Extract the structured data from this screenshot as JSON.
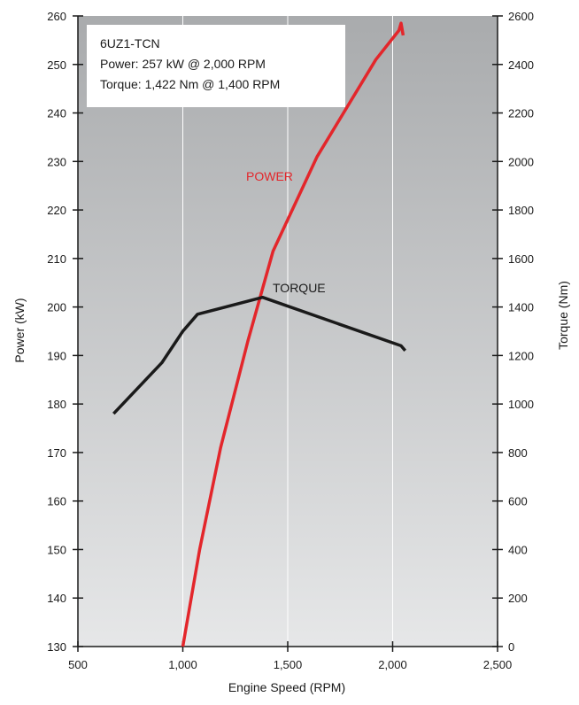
{
  "chart_data": {
    "type": "line",
    "xlabel": "Engine Speed (RPM)",
    "ylabel_left": "Power (kW)",
    "ylabel_right": "Torque (Nm)",
    "x_range": [
      500,
      2500
    ],
    "y_left_range": [
      130,
      260
    ],
    "y_right_range": [
      0,
      2600
    ],
    "x_ticks": [
      500,
      1000,
      1500,
      2000,
      2500
    ],
    "x_tick_labels": [
      "500",
      "1,000",
      "1,500",
      "2,000",
      "2,500"
    ],
    "y_left_ticks": [
      130,
      140,
      150,
      160,
      170,
      180,
      190,
      200,
      210,
      220,
      230,
      240,
      250,
      260
    ],
    "y_left_tick_labels": [
      "130",
      "140",
      "150",
      "160",
      "170",
      "180",
      "190",
      "200",
      "210",
      "220",
      "230",
      "240",
      "250",
      "260"
    ],
    "y_right_ticks": [
      0,
      200,
      400,
      600,
      800,
      1000,
      1200,
      1400,
      1600,
      1800,
      2000,
      2200,
      2400,
      2600
    ],
    "y_right_tick_labels": [
      "0",
      "200",
      "400",
      "600",
      "800",
      "1000",
      "1200",
      "1400",
      "1600",
      "1800",
      "2000",
      "2200",
      "2400",
      "2600"
    ],
    "grid": "vertical",
    "background": "vertical-gradient-grey",
    "legend": {
      "lines": [
        "6UZ1-TCN",
        "Power: 257 kW @ 2,000 RPM",
        "Torque: 1,422 Nm @ 1,400 RPM"
      ],
      "placement": "top-left"
    },
    "series": [
      {
        "name": "POWER",
        "axis": "left",
        "color": "#e3262b",
        "x": [
          1000,
          1080,
          1180,
          1310,
          1430,
          1640,
          1920,
          2030,
          2040,
          2050
        ],
        "y": [
          130,
          150,
          171,
          193,
          211.5,
          231,
          251,
          257,
          258.5,
          256
        ]
      },
      {
        "name": "TORQUE",
        "axis": "right",
        "color": "#1a1a1a",
        "x": [
          670,
          900,
          1000,
          1070,
          1380,
          2040,
          2060
        ],
        "y": [
          960,
          1170,
          1300,
          1370,
          1440,
          1240,
          1220
        ]
      }
    ]
  }
}
